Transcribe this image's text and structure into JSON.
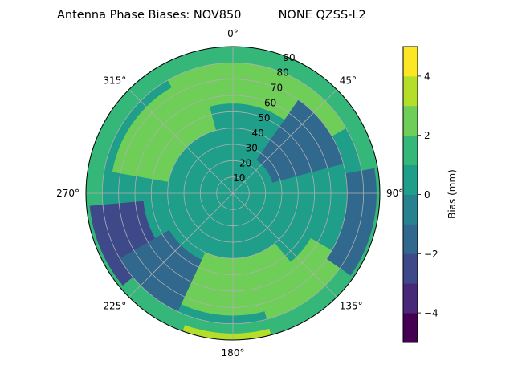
{
  "chart_data": {
    "type": "heatmap",
    "projection": "polar",
    "title": "Antenna Phase Biases: NOV850          NONE QZSS-L2",
    "theta_ticks": [
      "0°",
      "45°",
      "90°",
      "135°",
      "180°",
      "225°",
      "270°",
      "315°"
    ],
    "r_ticks": [
      "10",
      "20",
      "30",
      "40",
      "50",
      "60",
      "70",
      "80",
      "90"
    ],
    "r_lim": [
      0,
      90
    ],
    "theta_zero_location": "top",
    "theta_direction": "clockwise",
    "grid": true,
    "colorbar": {
      "label": "Bias (mm)",
      "min": -5,
      "max": 5,
      "levels": [
        -5,
        -4,
        -3,
        -2,
        -1,
        0,
        1,
        2,
        3,
        4,
        5
      ],
      "ticks": [
        "−4",
        "−2",
        "0",
        "2",
        "4"
      ],
      "tick_values": [
        -4,
        -2,
        0,
        2,
        4
      ],
      "colors": [
        "#440154",
        "#482878",
        "#3e4989",
        "#31688e",
        "#26828e",
        "#1f9e89",
        "#35b779",
        "#6ece58",
        "#b5de2b",
        "#fde725"
      ]
    },
    "regions": [
      {
        "label": "outer ring",
        "az": [
          0,
          360
        ],
        "zen": [
          80,
          90
        ],
        "value": 1.5
      },
      {
        "label": "NNE band",
        "az": [
          330,
          60
        ],
        "zen": [
          55,
          80
        ],
        "value": 2.2
      },
      {
        "label": "NW band",
        "az": [
          280,
          345
        ],
        "zen": [
          40,
          75
        ],
        "value": 2.2
      },
      {
        "label": "S band",
        "az": [
          140,
          205
        ],
        "zen": [
          40,
          75
        ],
        "value": 2.0
      },
      {
        "label": "SSE band",
        "az": [
          120,
          165
        ],
        "zen": [
          55,
          80
        ],
        "value": 2.3
      },
      {
        "label": "NE trough",
        "az": [
          35,
          75
        ],
        "zen": [
          25,
          70
        ],
        "value": -1.2
      },
      {
        "label": "WSW trough",
        "az": [
          230,
          265
        ],
        "zen": [
          55,
          88
        ],
        "value": -2.5
      },
      {
        "label": "E trough",
        "az": [
          80,
          125
        ],
        "zen": [
          70,
          88
        ],
        "value": -1.8
      },
      {
        "label": "SW trough",
        "az": [
          205,
          240
        ],
        "zen": [
          45,
          80
        ],
        "value": -1.8
      },
      {
        "label": "S rim peak",
        "az": [
          165,
          200
        ],
        "zen": [
          86,
          90
        ],
        "value": 3.5
      }
    ],
    "background_value": 0.5
  }
}
